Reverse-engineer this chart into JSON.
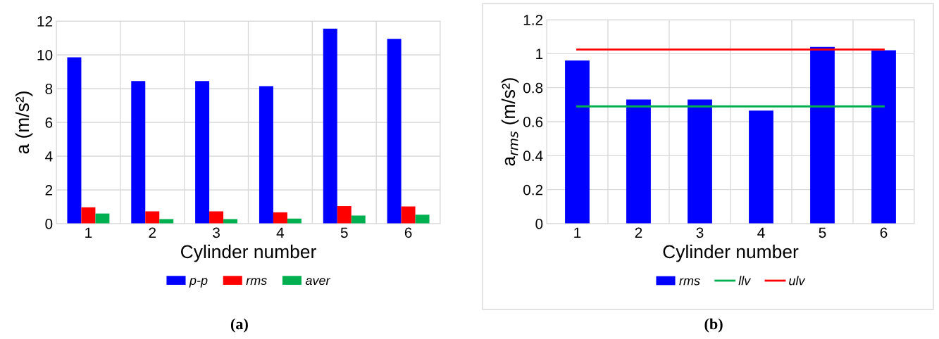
{
  "chart_data": [
    {
      "type": "bar",
      "xlabel": "Cylinder number",
      "ylabel": "a (m/s²)",
      "categories": [
        "1",
        "2",
        "3",
        "4",
        "5",
        "6"
      ],
      "series": [
        {
          "name": "p-p",
          "color": "#0000ff",
          "values": [
            9.85,
            8.45,
            8.45,
            8.15,
            11.55,
            10.95
          ]
        },
        {
          "name": "rms",
          "color": "#ff0000",
          "values": [
            0.97,
            0.73,
            0.73,
            0.67,
            1.04,
            1.02
          ]
        },
        {
          "name": "aver",
          "color": "#00b050",
          "values": [
            0.6,
            0.27,
            0.27,
            0.3,
            0.48,
            0.53
          ]
        }
      ],
      "ylim": [
        0,
        12
      ],
      "yticks": [
        0,
        2,
        4,
        6,
        8,
        10,
        12
      ],
      "grid": true,
      "legend": "bottom",
      "annotations": [
        "(a)"
      ]
    },
    {
      "type": "bar",
      "xlabel": "Cylinder number",
      "ylabel": "a$_{rms}$ (m/s²)",
      "categories": [
        "1",
        "2",
        "3",
        "4",
        "5",
        "6"
      ],
      "series": [
        {
          "name": "rms",
          "color": "#0000ff",
          "values": [
            0.96,
            0.73,
            0.73,
            0.665,
            1.04,
            1.02
          ]
        },
        {
          "name": "llv",
          "type": "line",
          "color": "#00b050",
          "values": [
            0.69,
            0.69,
            0.69,
            0.69,
            0.69,
            0.69
          ]
        },
        {
          "name": "ulv",
          "type": "line",
          "color": "#ff0000",
          "values": [
            1.025,
            1.025,
            1.025,
            1.025,
            1.025,
            1.025
          ]
        }
      ],
      "ylim": [
        0,
        1.2
      ],
      "yticks": [
        0,
        0.2,
        0.4,
        0.6,
        0.8,
        1,
        1.2
      ],
      "grid": true,
      "legend": "bottom",
      "annotations": [
        "(b)"
      ]
    }
  ]
}
